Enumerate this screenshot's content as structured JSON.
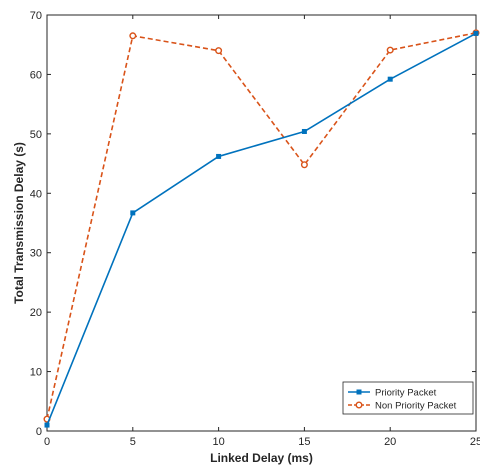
{
  "chart_data": {
    "type": "line",
    "xlabel": "Linked Delay (ms)",
    "ylabel": "Total Transmission Delay (s)",
    "xlim": [
      0,
      25
    ],
    "ylim": [
      0,
      70
    ],
    "x_ticks": [
      0,
      5,
      10,
      15,
      20,
      25
    ],
    "y_ticks": [
      0,
      10,
      20,
      30,
      40,
      50,
      60,
      70
    ],
    "grid": false,
    "legend_position": "bottom-right",
    "x": [
      0,
      5,
      10,
      15,
      20,
      25
    ],
    "series": [
      {
        "name": "Priority Packet",
        "values": [
          1,
          36.7,
          46.2,
          50.4,
          59.2,
          66.9
        ],
        "color": "#0072BD",
        "line_style": "solid",
        "marker": "square"
      },
      {
        "name": "Non Priority Packet",
        "values": [
          2,
          66.5,
          64.0,
          44.8,
          64.1,
          67.0
        ],
        "color": "#D95319",
        "line_style": "dashed",
        "marker": "circle"
      }
    ]
  }
}
